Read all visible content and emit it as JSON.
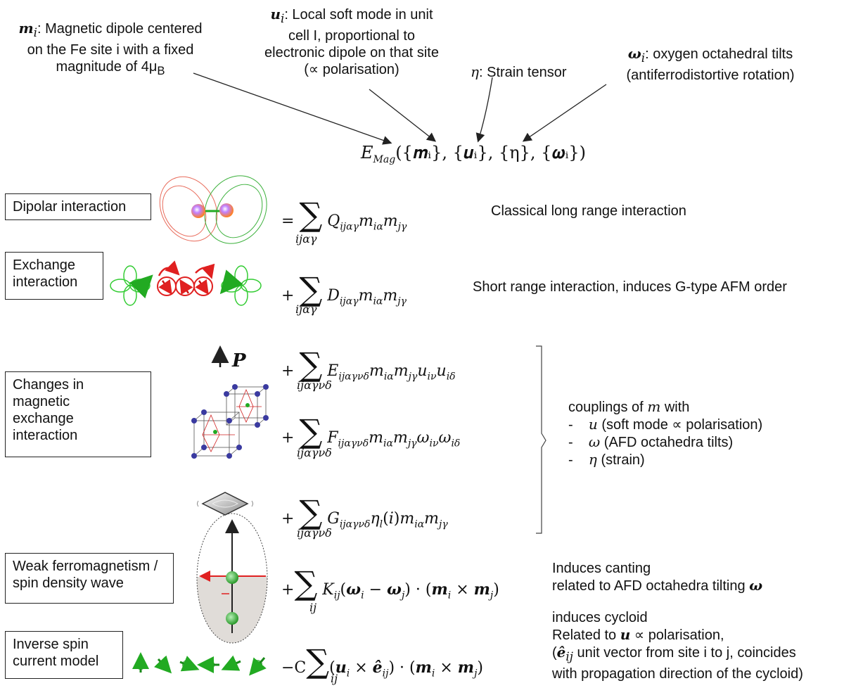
{
  "top_notes": {
    "m_note_sym": "m",
    "m_note_sub": "i",
    "m_note_text1": ": Magnetic dipole centered",
    "m_note_text2": "on the Fe site i with a fixed",
    "m_note_text3": "magnitude of 4μ",
    "m_note_text3_sub": "B",
    "u_note_sym": "u",
    "u_note_sub": "i",
    "u_note_text1": ": Local soft mode in unit",
    "u_note_text2": "cell I, proportional to",
    "u_note_text3": "electronic dipole on that site",
    "u_note_text4": "(∝ polarisation)",
    "eta_note_sym": "η",
    "eta_note_text": ": Strain tensor",
    "omega_note_sym": "ω",
    "omega_note_sub": "i",
    "omega_note_text1": ": oxygen octahedral tilts",
    "omega_note_text2": "(antiferrodistortive rotation)"
  },
  "main_eq": {
    "E": "E",
    "sub": "Mag",
    "args": "({m",
    "args_full": "({𝒎ᵢ}, {𝒖ᵢ}, {η}, {𝝎ᵢ})"
  },
  "rows": [
    {
      "label": "Dipolar interaction",
      "op": "=",
      "coef": "Q",
      "coef_sub": "ijαγ",
      "tail": "m",
      "sum_sub": "ijαγ",
      "desc": "Classical long range interaction"
    },
    {
      "label_line1": "Exchange",
      "label_line2": "interaction",
      "op": "+",
      "coef": "D",
      "coef_sub": "ijαγ",
      "sum_sub": "ijαγ",
      "desc": "Short range interaction, induces G-type AFM order"
    },
    {
      "label_line1": "Changes in",
      "label_line2": "magnetic",
      "label_line3": "exchange",
      "label_line4": "interaction",
      "op": "+",
      "coef": "E",
      "coef_sub": "ijαγνδ",
      "sum_sub": "ijαγνδ",
      "p_label": "P"
    },
    {
      "op": "+",
      "coef": "F",
      "coef_sub": "ijαγνδ",
      "sum_sub": "ijαγνδ"
    },
    {
      "op": "+",
      "coef": "G",
      "coef_sub": "ijαγνδ",
      "sum_sub": "ijαγνδ"
    },
    {
      "label_line1": "Weak ferromagnetism /",
      "label_line2": "spin density wave",
      "op": "+",
      "coef": "K",
      "coef_sub": "ij",
      "sum_sub": "ij",
      "desc1": "Induces canting",
      "desc2": "related to AFD octahedra tilting"
    },
    {
      "label_line1": "Inverse spin",
      "label_line2": "current model",
      "op": "−C",
      "sum_sub": "ij",
      "desc0": "induces cycloid",
      "desc1": "Related to",
      "desc1b": "∝ polarisation,",
      "desc2": "unit vector from site i to j, coincides",
      "desc3": "with propagation direction of the cycloid)"
    }
  ],
  "couplings": {
    "title": "couplings of",
    "title_sym": "m",
    "title_end": "with",
    "items": [
      {
        "dash": "-",
        "sym": "u",
        "text": "(soft mode ∝ polarisation)"
      },
      {
        "dash": "-",
        "sym": "ω",
        "text": "(AFD octahedra tilts)"
      },
      {
        "dash": "-",
        "sym": "η",
        "text": "(strain)"
      }
    ]
  },
  "colors": {
    "arrow": "#222222",
    "red": "#e02020",
    "green": "#22aa22",
    "blue": "#2a2a9a",
    "ellipse_fill": "#e0dcd8"
  }
}
